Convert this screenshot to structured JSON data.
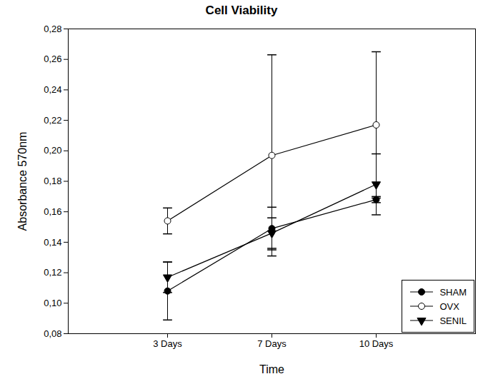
{
  "chart_data": {
    "type": "line",
    "title": "Cell Viability",
    "x_label": "Time",
    "y_label": "Absorbance 570nm",
    "categories": [
      "3 Days",
      "7 Days",
      "10 Days"
    ],
    "series": [
      {
        "name": "SHAM",
        "color": "#000000",
        "marker": "circle",
        "values": [
          0.108,
          0.149,
          0.168
        ],
        "errors": [
          0.019,
          0.014,
          0.002
        ]
      },
      {
        "name": "OVX",
        "color": "#000000",
        "marker": "open_circle",
        "values": [
          0.154,
          0.197,
          0.217
        ],
        "errors": [
          0.0085,
          0.066,
          0.048
        ]
      },
      {
        "name": "SENIL",
        "color": "#000000",
        "marker": "triangle_down",
        "values": [
          0.117,
          0.146,
          0.178
        ],
        "errors": [
          0.01,
          0.01,
          0.02
        ]
      }
    ],
    "ylim": [
      0.08,
      0.28
    ],
    "yticks": [
      {
        "value": 0.08,
        "label": "0,08"
      },
      {
        "value": 0.1,
        "label": "0,10"
      },
      {
        "value": 0.12,
        "label": "0,12"
      },
      {
        "value": 0.14,
        "label": "0,14"
      },
      {
        "value": 0.16,
        "label": "0,16"
      },
      {
        "value": 0.18,
        "label": "0,18"
      },
      {
        "value": 0.2,
        "label": "0,20"
      },
      {
        "value": 0.22,
        "label": "0,22"
      },
      {
        "value": 0.24,
        "label": "0,24"
      },
      {
        "value": 0.26,
        "label": "0,26"
      },
      {
        "value": 0.28,
        "label": "0,28"
      }
    ],
    "grid": false,
    "legend": "lower right"
  }
}
